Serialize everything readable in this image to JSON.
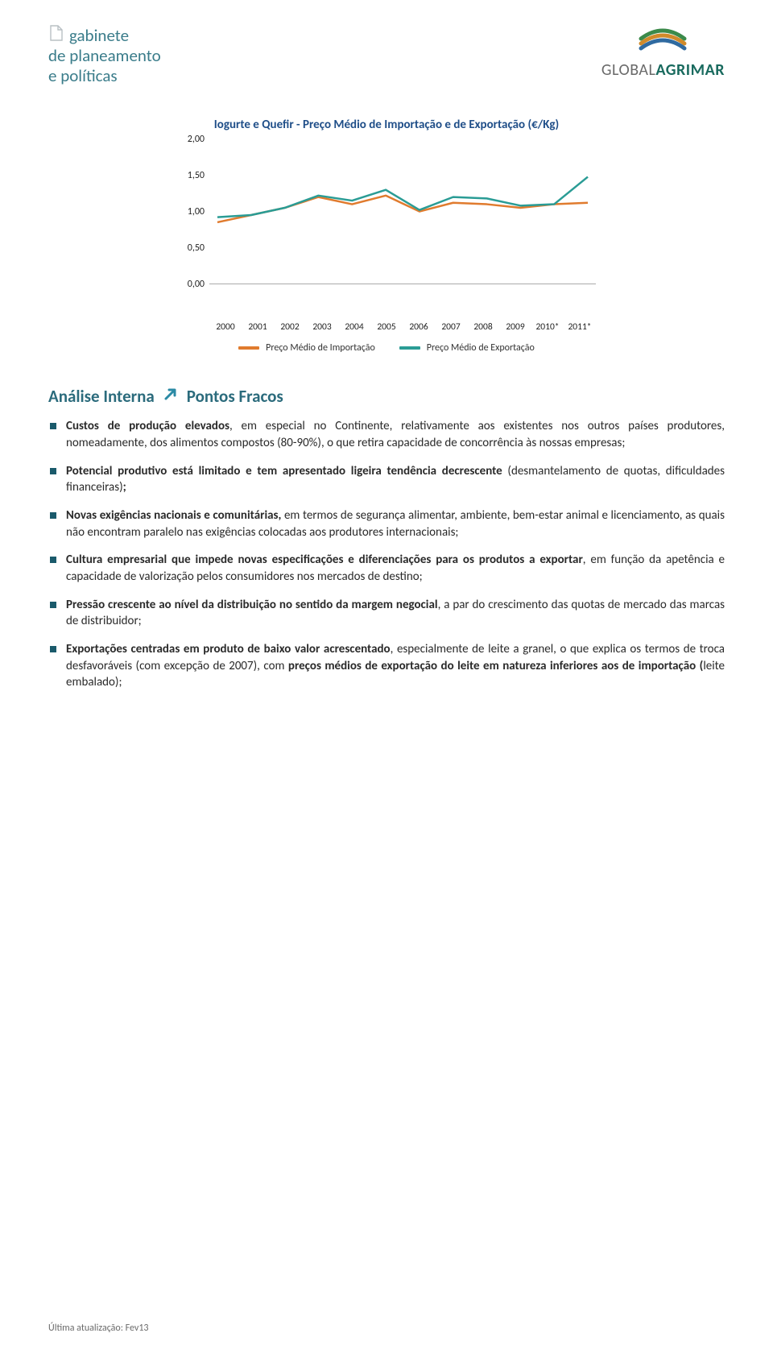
{
  "logo_left": {
    "line1": "gabinete",
    "line2": "de planeamento",
    "line3": "e políticas",
    "color": "#3a7c8a"
  },
  "logo_right": {
    "text1": "GLOBAL",
    "text2": "AGRIMAR",
    "arc_colors": [
      "#d08a2a",
      "#3b8a4a",
      "#2f6aa0"
    ]
  },
  "chart": {
    "type": "line",
    "title": "Iogurte e Quefir - Preço Médio de Importação e de Exportação (€/Kg)",
    "title_color": "#1f4e88",
    "title_fontsize": 15,
    "background_color": "#ffffff",
    "xlabels": [
      "2000",
      "2001",
      "2002",
      "2003",
      "2004",
      "2005",
      "2006",
      "2007",
      "2008",
      "2009",
      "2010*",
      "2011*"
    ],
    "ylim": [
      0,
      2.0
    ],
    "yticks": [
      0.0,
      0.5,
      1.0,
      1.5,
      2.0
    ],
    "ytick_labels": [
      "0,00",
      "0,50",
      "1,00",
      "1,50",
      "2,00"
    ],
    "axis_fontsize": 12,
    "series": [
      {
        "name": "Preço Médio de Importação",
        "color": "#e07b2e",
        "line_width": 2.5,
        "values": [
          0.85,
          0.95,
          1.05,
          1.2,
          1.1,
          1.22,
          1.0,
          1.12,
          1.1,
          1.05,
          1.1,
          1.12
        ]
      },
      {
        "name": "Preço Médio de Exportação",
        "color": "#2a9c95",
        "line_width": 2.5,
        "values": [
          0.92,
          0.95,
          1.05,
          1.22,
          1.15,
          1.3,
          1.02,
          1.2,
          1.18,
          1.08,
          1.1,
          1.48
        ]
      }
    ],
    "legend": [
      {
        "swatch": "#e07b2e",
        "label": "Preço Médio de Importação"
      },
      {
        "swatch": "#2a9c95",
        "label": "Preço Médio de Exportação"
      }
    ]
  },
  "section": {
    "label": "Análise Interna",
    "arrow_color": "#2b8aa5",
    "sub": "Pontos Fracos"
  },
  "bullets": [
    {
      "parts": [
        {
          "t": "Custos de produção elevados",
          "b": true
        },
        {
          "t": ", em especial no Continente, relativamente aos existentes nos outros países produtores, nomeadamente, dos alimentos compostos (80-90%), o que retira capacidade de concorrência às nossas empresas;"
        }
      ]
    },
    {
      "parts": [
        {
          "t": "Potencial produtivo está limitado e tem apresentado ligeira tendência decrescente",
          "b": true
        },
        {
          "t": " (desmantelamento de quotas, dificuldades financeiras)"
        },
        {
          "t": ";",
          "b": true
        }
      ]
    },
    {
      "parts": [
        {
          "t": "Novas exigências nacionais e comunitárias,",
          "b": true
        },
        {
          "t": " em termos de segurança alimentar, ambiente, bem-estar animal e licenciamento, as quais não encontram paralelo nas exigências colocadas aos produtores internacionais;"
        }
      ]
    },
    {
      "parts": [
        {
          "t": "Cultura empresarial que impede novas especificações e diferenciações para os produtos a exportar",
          "b": true
        },
        {
          "t": ", em função da apetência e capacidade de valorização pelos consumidores nos mercados de destino;"
        }
      ]
    },
    {
      "parts": [
        {
          "t": "Pressão crescente ao nível da distribuição no sentido da margem negocial",
          "b": true
        },
        {
          "t": ", a par do crescimento das quotas de mercado das marcas de distribuidor;"
        }
      ]
    },
    {
      "parts": [
        {
          "t": "Exportações centradas em produto de baixo valor acrescentado",
          "b": true
        },
        {
          "t": ", especialmente de leite a granel, o que explica os termos de troca desfavoráveis (com excepção de 2007), com "
        },
        {
          "t": "preços médios de exportação do leite em natureza inferiores aos de importação (",
          "b": true
        },
        {
          "t": "leite embalado);"
        }
      ]
    }
  ],
  "footer": "Última atualização: Fev13"
}
